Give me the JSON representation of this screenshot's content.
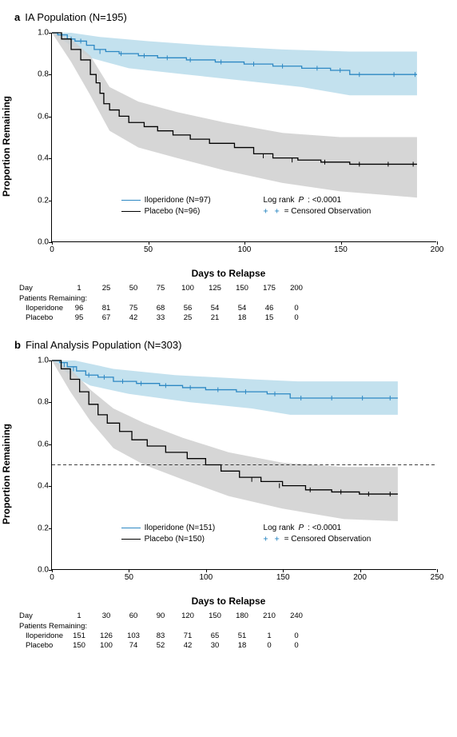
{
  "panels": [
    {
      "letter": "a",
      "title": "IA Population (N=195)",
      "ylabel": "Proportion Remaining",
      "xlabel": "Days to Relapse",
      "xlim": [
        0,
        200
      ],
      "ylim": [
        0,
        1.0
      ],
      "xticks": [
        0,
        50,
        100,
        150,
        200
      ],
      "yticks": [
        0,
        0.2,
        0.4,
        0.6,
        0.8,
        1.0
      ],
      "dashed_ref": null,
      "series": [
        {
          "name": "Iloperidone (N=97)",
          "color": "#2d88c3",
          "ci_color": "#b9dceb",
          "step": [
            [
              0,
              1.0
            ],
            [
              3,
              0.99
            ],
            [
              8,
              0.97
            ],
            [
              12,
              0.96
            ],
            [
              18,
              0.94
            ],
            [
              22,
              0.92
            ],
            [
              28,
              0.91
            ],
            [
              35,
              0.9
            ],
            [
              45,
              0.89
            ],
            [
              55,
              0.88
            ],
            [
              70,
              0.87
            ],
            [
              85,
              0.86
            ],
            [
              100,
              0.85
            ],
            [
              115,
              0.84
            ],
            [
              130,
              0.83
            ],
            [
              145,
              0.82
            ],
            [
              155,
              0.8
            ],
            [
              170,
              0.8
            ],
            [
              190,
              0.8
            ]
          ],
          "ci_upper": [
            [
              0,
              1.0
            ],
            [
              10,
              1.0
            ],
            [
              25,
              0.98
            ],
            [
              50,
              0.96
            ],
            [
              80,
              0.94
            ],
            [
              120,
              0.92
            ],
            [
              155,
              0.91
            ],
            [
              190,
              0.91
            ]
          ],
          "ci_lower": [
            [
              0,
              1.0
            ],
            [
              8,
              0.95
            ],
            [
              20,
              0.88
            ],
            [
              40,
              0.83
            ],
            [
              70,
              0.8
            ],
            [
              100,
              0.77
            ],
            [
              130,
              0.74
            ],
            [
              155,
              0.7
            ],
            [
              190,
              0.7
            ]
          ],
          "censor": [
            [
              5,
              0.99
            ],
            [
              10,
              0.97
            ],
            [
              15,
              0.96
            ],
            [
              25,
              0.91
            ],
            [
              36,
              0.9
            ],
            [
              48,
              0.89
            ],
            [
              60,
              0.88
            ],
            [
              72,
              0.87
            ],
            [
              88,
              0.86
            ],
            [
              105,
              0.85
            ],
            [
              120,
              0.84
            ],
            [
              138,
              0.83
            ],
            [
              150,
              0.82
            ],
            [
              160,
              0.8
            ],
            [
              178,
              0.8
            ],
            [
              189,
              0.8
            ]
          ]
        },
        {
          "name": "Placebo (N=96)",
          "color": "#000000",
          "ci_color": "#cfcfcf",
          "step": [
            [
              0,
              1.0
            ],
            [
              5,
              0.97
            ],
            [
              10,
              0.92
            ],
            [
              15,
              0.87
            ],
            [
              20,
              0.8
            ],
            [
              23,
              0.76
            ],
            [
              25,
              0.71
            ],
            [
              27,
              0.66
            ],
            [
              30,
              0.63
            ],
            [
              35,
              0.6
            ],
            [
              40,
              0.57
            ],
            [
              48,
              0.55
            ],
            [
              55,
              0.53
            ],
            [
              63,
              0.51
            ],
            [
              72,
              0.49
            ],
            [
              82,
              0.47
            ],
            [
              95,
              0.45
            ],
            [
              105,
              0.42
            ],
            [
              115,
              0.4
            ],
            [
              128,
              0.39
            ],
            [
              140,
              0.38
            ],
            [
              155,
              0.37
            ],
            [
              170,
              0.37
            ],
            [
              190,
              0.37
            ]
          ],
          "ci_upper": [
            [
              0,
              1.0
            ],
            [
              10,
              0.97
            ],
            [
              20,
              0.89
            ],
            [
              30,
              0.74
            ],
            [
              45,
              0.67
            ],
            [
              65,
              0.62
            ],
            [
              90,
              0.57
            ],
            [
              120,
              0.52
            ],
            [
              150,
              0.5
            ],
            [
              190,
              0.5
            ]
          ],
          "ci_lower": [
            [
              0,
              1.0
            ],
            [
              10,
              0.86
            ],
            [
              20,
              0.7
            ],
            [
              30,
              0.53
            ],
            [
              45,
              0.45
            ],
            [
              65,
              0.4
            ],
            [
              90,
              0.34
            ],
            [
              120,
              0.28
            ],
            [
              150,
              0.24
            ],
            [
              190,
              0.21
            ]
          ],
          "censor": [
            [
              110,
              0.41
            ],
            [
              125,
              0.39
            ],
            [
              142,
              0.38
            ],
            [
              160,
              0.37
            ],
            [
              175,
              0.37
            ],
            [
              188,
              0.37
            ]
          ]
        }
      ],
      "legend": {
        "left_pct": 18,
        "top_pct": 78,
        "stat_left_pct": 55,
        "stat_top_pct": 78,
        "logrank": "Log rank P: <0.0001",
        "censor_label": "= Censored Observation"
      },
      "risk_table": {
        "day_label": "Day",
        "section_label": "Patients Remaining:",
        "days": [
          1,
          25,
          50,
          75,
          100,
          125,
          150,
          175,
          200
        ],
        "rows": [
          {
            "label": "Iloperidone",
            "values": [
              96,
              81,
              75,
              68,
              56,
              54,
              54,
              46,
              0
            ]
          },
          {
            "label": "Placebo",
            "values": [
              95,
              67,
              42,
              33,
              25,
              21,
              18,
              15,
              0
            ]
          }
        ]
      }
    },
    {
      "letter": "b",
      "title": "Final Analysis Population (N=303)",
      "ylabel": "Proportion Remaining",
      "xlabel": "Days to Relapse",
      "xlim": [
        0,
        250
      ],
      "ylim": [
        0,
        1.0
      ],
      "xticks": [
        0,
        50,
        100,
        150,
        200,
        250
      ],
      "yticks": [
        0,
        0.2,
        0.4,
        0.6,
        0.8,
        1.0
      ],
      "dashed_ref": 0.5,
      "series": [
        {
          "name": "Iloperidone (N=151)",
          "color": "#2d88c3",
          "ci_color": "#b9dceb",
          "step": [
            [
              0,
              1.0
            ],
            [
              5,
              0.99
            ],
            [
              10,
              0.97
            ],
            [
              16,
              0.95
            ],
            [
              22,
              0.93
            ],
            [
              30,
              0.92
            ],
            [
              40,
              0.9
            ],
            [
              55,
              0.89
            ],
            [
              70,
              0.88
            ],
            [
              85,
              0.87
            ],
            [
              100,
              0.86
            ],
            [
              120,
              0.85
            ],
            [
              140,
              0.84
            ],
            [
              155,
              0.82
            ],
            [
              175,
              0.82
            ],
            [
              200,
              0.82
            ],
            [
              225,
              0.82
            ]
          ],
          "ci_upper": [
            [
              0,
              1.0
            ],
            [
              15,
              1.0
            ],
            [
              40,
              0.96
            ],
            [
              80,
              0.93
            ],
            [
              130,
              0.91
            ],
            [
              160,
              0.9
            ],
            [
              225,
              0.9
            ]
          ],
          "ci_lower": [
            [
              0,
              1.0
            ],
            [
              10,
              0.94
            ],
            [
              25,
              0.88
            ],
            [
              50,
              0.84
            ],
            [
              90,
              0.8
            ],
            [
              130,
              0.77
            ],
            [
              155,
              0.74
            ],
            [
              200,
              0.74
            ],
            [
              225,
              0.74
            ]
          ],
          "censor": [
            [
              8,
              0.98
            ],
            [
              14,
              0.96
            ],
            [
              24,
              0.93
            ],
            [
              34,
              0.92
            ],
            [
              46,
              0.9
            ],
            [
              58,
              0.89
            ],
            [
              74,
              0.88
            ],
            [
              90,
              0.87
            ],
            [
              108,
              0.86
            ],
            [
              126,
              0.85
            ],
            [
              145,
              0.84
            ],
            [
              162,
              0.82
            ],
            [
              182,
              0.82
            ],
            [
              202,
              0.82
            ],
            [
              220,
              0.82
            ]
          ]
        },
        {
          "name": "Placebo (N=150)",
          "color": "#000000",
          "ci_color": "#cfcfcf",
          "step": [
            [
              0,
              1.0
            ],
            [
              6,
              0.96
            ],
            [
              12,
              0.91
            ],
            [
              18,
              0.85
            ],
            [
              24,
              0.79
            ],
            [
              30,
              0.74
            ],
            [
              36,
              0.7
            ],
            [
              44,
              0.66
            ],
            [
              52,
              0.62
            ],
            [
              62,
              0.59
            ],
            [
              74,
              0.56
            ],
            [
              88,
              0.53
            ],
            [
              100,
              0.5
            ],
            [
              110,
              0.47
            ],
            [
              122,
              0.44
            ],
            [
              136,
              0.42
            ],
            [
              150,
              0.4
            ],
            [
              165,
              0.38
            ],
            [
              182,
              0.37
            ],
            [
              200,
              0.36
            ],
            [
              225,
              0.36
            ]
          ],
          "ci_upper": [
            [
              0,
              1.0
            ],
            [
              12,
              0.96
            ],
            [
              25,
              0.86
            ],
            [
              40,
              0.77
            ],
            [
              60,
              0.7
            ],
            [
              85,
              0.63
            ],
            [
              115,
              0.56
            ],
            [
              150,
              0.51
            ],
            [
              190,
              0.49
            ],
            [
              225,
              0.49
            ]
          ],
          "ci_lower": [
            [
              0,
              1.0
            ],
            [
              12,
              0.85
            ],
            [
              25,
              0.71
            ],
            [
              40,
              0.58
            ],
            [
              60,
              0.5
            ],
            [
              85,
              0.43
            ],
            [
              115,
              0.35
            ],
            [
              150,
              0.29
            ],
            [
              190,
              0.24
            ],
            [
              225,
              0.23
            ]
          ],
          "censor": [
            [
              130,
              0.43
            ],
            [
              148,
              0.4
            ],
            [
              168,
              0.38
            ],
            [
              188,
              0.37
            ],
            [
              206,
              0.36
            ],
            [
              220,
              0.36
            ]
          ]
        }
      ],
      "legend": {
        "left_pct": 18,
        "top_pct": 78,
        "stat_left_pct": 55,
        "stat_top_pct": 78,
        "logrank": "Log rank P: <0.0001",
        "censor_label": "= Censored Observation"
      },
      "risk_table": {
        "day_label": "Day",
        "section_label": "Patients Remaining:",
        "days": [
          1,
          30,
          60,
          90,
          120,
          150,
          180,
          210,
          240
        ],
        "rows": [
          {
            "label": "Iloperidone",
            "values": [
              151,
              126,
              103,
              83,
              71,
              65,
              51,
              1,
              0
            ]
          },
          {
            "label": "Placebo",
            "values": [
              150,
              100,
              74,
              52,
              42,
              30,
              18,
              0,
              0
            ]
          }
        ]
      }
    }
  ],
  "censor_glyph_color": "#2d88c3"
}
